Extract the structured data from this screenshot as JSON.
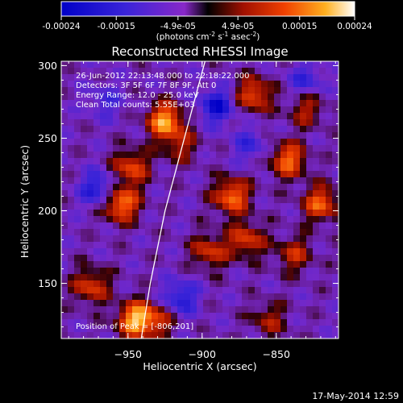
{
  "chart_data": {
    "type": "heatmap",
    "title": "Reconstructed RHESSI Image",
    "xlabel": "Heliocentric X (arcsec)",
    "ylabel": "Heliocentric Y (arcsec)",
    "xlim": [
      -995,
      -808
    ],
    "ylim": [
      112,
      303
    ],
    "x_ticks": [
      -950,
      -900,
      -850
    ],
    "y_ticks": [
      150,
      200,
      250,
      300
    ],
    "colorbar": {
      "range": [
        -0.00024,
        0.00024
      ],
      "tick_values": [
        -0.00024,
        -0.00015,
        -4.9e-05,
        4.9e-05,
        0.00015,
        0.00024
      ],
      "tick_labels": [
        "-0.00024",
        "-0.00015",
        "-4.9e-05",
        "4.9e-05",
        "0.00015",
        "0.00024"
      ],
      "unit_prefix": "(photons cm",
      "unit_exp1": "-2",
      "unit_mid": " s",
      "unit_exp2": "-1",
      "unit_mid2": " asec",
      "unit_exp3": "-2",
      "unit_suffix": ")"
    },
    "info_lines": [
      "26-Jun-2012 22:13:48.000 to 22:18:22.000",
      "Detectors: 3F 5F 6F 7F 8F 9F, Att 0",
      "Energy Range: 12.0 - 25.0 keV",
      "Clean     Total counts: 5.55E+03"
    ],
    "peak_label": "Position of Peak = [-806,201]",
    "peak_position": [
      -806,
      201
    ],
    "limb_curve": [
      [
        -941,
        112
      ],
      [
        -935,
        150
      ],
      [
        -925,
        200
      ],
      [
        -912,
        250
      ],
      [
        -898,
        303
      ]
    ],
    "hotspots": [
      {
        "x": -975,
        "y": 148,
        "value": 0.00015
      },
      {
        "x": -955,
        "y": 205,
        "value": 0.00022
      },
      {
        "x": -948,
        "y": 230,
        "value": 0.00016
      },
      {
        "x": -945,
        "y": 125,
        "value": 0.00024
      },
      {
        "x": -930,
        "y": 125,
        "value": 0.00012
      },
      {
        "x": -925,
        "y": 262,
        "value": 0.00023
      },
      {
        "x": -915,
        "y": 245,
        "value": 0.0001
      },
      {
        "x": -895,
        "y": 172,
        "value": 0.00014
      },
      {
        "x": -880,
        "y": 210,
        "value": 0.0002
      },
      {
        "x": -870,
        "y": 180,
        "value": 0.00015
      },
      {
        "x": -865,
        "y": 280,
        "value": 0.00017
      },
      {
        "x": -842,
        "y": 235,
        "value": 0.00019
      },
      {
        "x": -838,
        "y": 170,
        "value": 0.00012
      },
      {
        "x": -820,
        "y": 205,
        "value": 0.00018
      },
      {
        "x": -855,
        "y": 125,
        "value": 0.0001
      },
      {
        "x": -830,
        "y": 270,
        "value": 0.00011
      }
    ],
    "coldspots": [
      {
        "x": -970,
        "y": 215,
        "value": -0.00015
      },
      {
        "x": -915,
        "y": 140,
        "value": -0.00014
      },
      {
        "x": -890,
        "y": 272,
        "value": -0.00016
      },
      {
        "x": -830,
        "y": 290,
        "value": -0.0001
      },
      {
        "x": -868,
        "y": 245,
        "value": -9e-05
      },
      {
        "x": -965,
        "y": 275,
        "value": -8e-05
      }
    ]
  },
  "footer": {
    "timestamp": "17-May-2014 12:59"
  }
}
